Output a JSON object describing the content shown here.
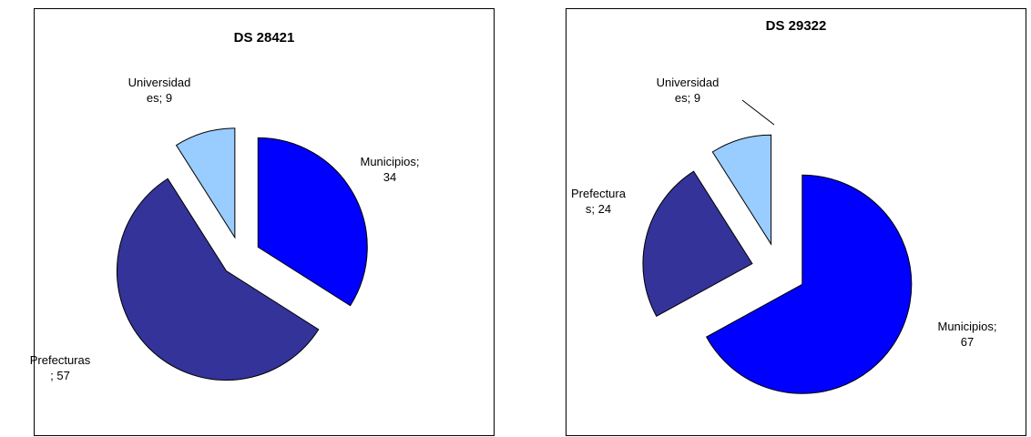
{
  "colors": {
    "Municipios": "#0000ff",
    "Prefecturas": "#333399",
    "Universidades": "#99ccff"
  },
  "chart_data": [
    {
      "type": "pie",
      "title": "DS 28421",
      "slices": [
        {
          "name": "Municipios",
          "value": 34,
          "label_lines": [
            "Municipios;",
            "34"
          ]
        },
        {
          "name": "Prefecturas",
          "value": 57,
          "label_lines": [
            "Prefecturas",
            "; 57"
          ]
        },
        {
          "name": "Universidades",
          "value": 9,
          "label_lines": [
            "Universidad",
            "es; 9"
          ]
        }
      ]
    },
    {
      "type": "pie",
      "title": "DS 29322",
      "slices": [
        {
          "name": "Municipios",
          "value": 67,
          "label_lines": [
            "Municipios;",
            "67"
          ]
        },
        {
          "name": "Prefecturas",
          "value": 24,
          "label_lines": [
            "Prefectura",
            "s; 24"
          ]
        },
        {
          "name": "Universidades",
          "value": 9,
          "label_lines": [
            "Universidad",
            "es; 9"
          ]
        }
      ]
    }
  ]
}
